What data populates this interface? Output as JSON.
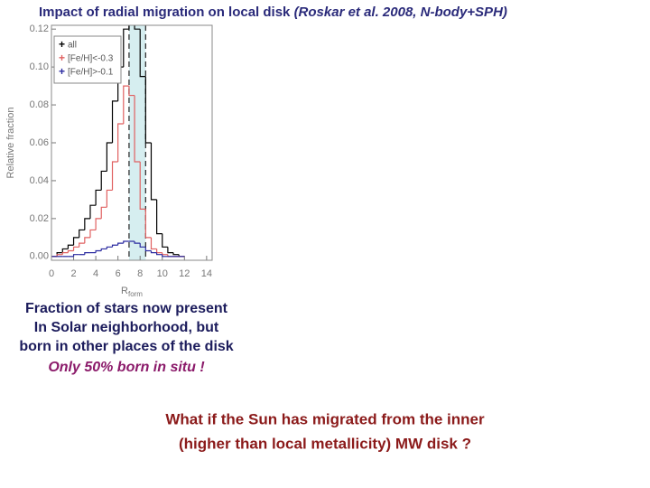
{
  "title": "Impact of radial migration on local disk",
  "citation": "(Roskar et al. 2008, N-body+SPH)",
  "chart_data": {
    "type": "histogram",
    "xlabel": "R",
    "xlabel_sub": "form",
    "ylabel": "Relative fraction",
    "bins": [
      0,
      0.5,
      1,
      1.5,
      2,
      2.5,
      3,
      3.5,
      4,
      4.5,
      5,
      5.5,
      6,
      6.5,
      7,
      7.5,
      8,
      8.5,
      9,
      9.5,
      10,
      10.5,
      11,
      11.5,
      12
    ],
    "series": [
      {
        "name": "all",
        "color": "#000000",
        "values": [
          0,
          0.002,
          0.004,
          0.006,
          0.01,
          0.014,
          0.02,
          0.027,
          0.035,
          0.045,
          0.06,
          0.082,
          0.1,
          0.12,
          0.125,
          0.12,
          0.095,
          0.06,
          0.03,
          0.012,
          0.005,
          0.002,
          0.001,
          0
        ]
      },
      {
        "name": "[Fe/H]<-0.3",
        "color": "#e06060",
        "values": [
          0,
          0.001,
          0.002,
          0.003,
          0.005,
          0.007,
          0.01,
          0.014,
          0.02,
          0.026,
          0.035,
          0.05,
          0.07,
          0.09,
          0.085,
          0.05,
          0.025,
          0.01,
          0.004,
          0.002,
          0.001,
          0,
          0,
          0
        ]
      },
      {
        "name": "[Fe/H]>-0.1",
        "color": "#2a2aa0",
        "values": [
          0,
          0,
          0,
          0,
          0.001,
          0.001,
          0.002,
          0.002,
          0.003,
          0.004,
          0.005,
          0.006,
          0.007,
          0.008,
          0.008,
          0.007,
          0.005,
          0.003,
          0.002,
          0.001,
          0,
          0,
          0,
          0
        ]
      }
    ],
    "highlight_range": [
      7,
      8.5
    ],
    "xlim": [
      0,
      14.5
    ],
    "ylim": [
      -0.002,
      0.122
    ],
    "xticks": [
      0,
      2,
      4,
      6,
      8,
      10,
      12,
      14
    ],
    "yticks": [
      {
        "value": 0,
        "label": "0.00"
      },
      {
        "value": 0.02,
        "label": "0.02"
      },
      {
        "value": 0.04,
        "label": "0.04"
      },
      {
        "value": 0.06,
        "label": "0.06"
      },
      {
        "value": 0.08,
        "label": "0.08"
      },
      {
        "value": 0.1,
        "label": "0.10"
      },
      {
        "value": 0.12,
        "label": "0.12"
      }
    ]
  },
  "caption": [
    "Fraction of stars now present",
    "In Solar neighborhood, but",
    "born in other places of the disk"
  ],
  "note": "Only 50% born in situ !",
  "question": [
    "What if the Sun has migrated from the inner",
    "(higher than local metallicity) MW disk ?"
  ]
}
